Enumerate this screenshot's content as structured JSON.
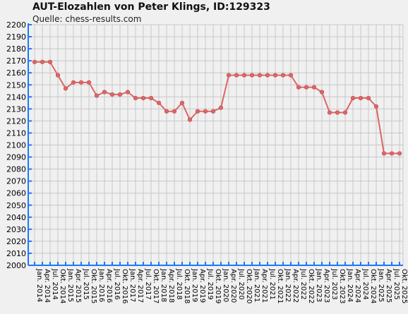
{
  "chart_data": {
    "type": "line",
    "title": "AUT-Elozahlen von Peter Klings, ID:129323",
    "subtitle": "Quelle: chess-results.com",
    "xlabel": "",
    "ylabel": "",
    "ylim": [
      2000,
      2200
    ],
    "y_ticks": [
      2000,
      2010,
      2020,
      2030,
      2040,
      2050,
      2060,
      2070,
      2080,
      2090,
      2100,
      2110,
      2120,
      2130,
      2140,
      2150,
      2160,
      2170,
      2180,
      2190,
      2200
    ],
    "grid": true,
    "line_color": "#dd6666",
    "categories": [
      "Jan. 2014",
      "Apr. 2014",
      "Jul. 2014",
      "Okt. 2014",
      "Jan. 2015",
      "Apr. 2015",
      "Jul. 2015",
      "Okt. 2015",
      "Jan. 2016",
      "Apr. 2016",
      "Jul. 2016",
      "Okt. 2016",
      "Jan. 2017",
      "Apr. 2017",
      "Jul. 2017",
      "Okt. 2017",
      "Jan. 2018",
      "Apr. 2018",
      "Jul. 2018",
      "Okt. 2018",
      "Jan. 2019",
      "Apr. 2019",
      "Jul. 2019",
      "Okt. 2019",
      "Jan. 2020",
      "Apr. 2020",
      "Jul. 2020",
      "Okt. 2020",
      "Jan. 2021",
      "Apr. 2021",
      "Jul. 2021",
      "Okt. 2021",
      "Jan. 2022",
      "Apr. 2022",
      "Jul. 2022",
      "Okt. 2022",
      "Jan. 2023",
      "Apr. 2023",
      "Jul. 2023",
      "Okt. 2023",
      "Jan. 2024",
      "Apr. 2024",
      "Jul. 2024",
      "Okt. 2024",
      "Jan. 2025",
      "Apr. 2025",
      "Jul. 2025",
      "Okt. 2025"
    ],
    "values": [
      2169,
      2169,
      2169,
      2158,
      2147,
      2152,
      2152,
      2152,
      2141,
      2144,
      2142,
      2142,
      2144,
      2139,
      2139,
      2139,
      2135,
      2128,
      2128,
      2135,
      2121,
      2128,
      2128,
      2128,
      2131,
      2158,
      2158,
      2158,
      2158,
      2158,
      2158,
      2158,
      2158,
      2158,
      2148,
      2148,
      2148,
      2144,
      2127,
      2127,
      2127,
      2139,
      2139,
      2139,
      2132,
      2093,
      2093,
      2093
    ]
  }
}
